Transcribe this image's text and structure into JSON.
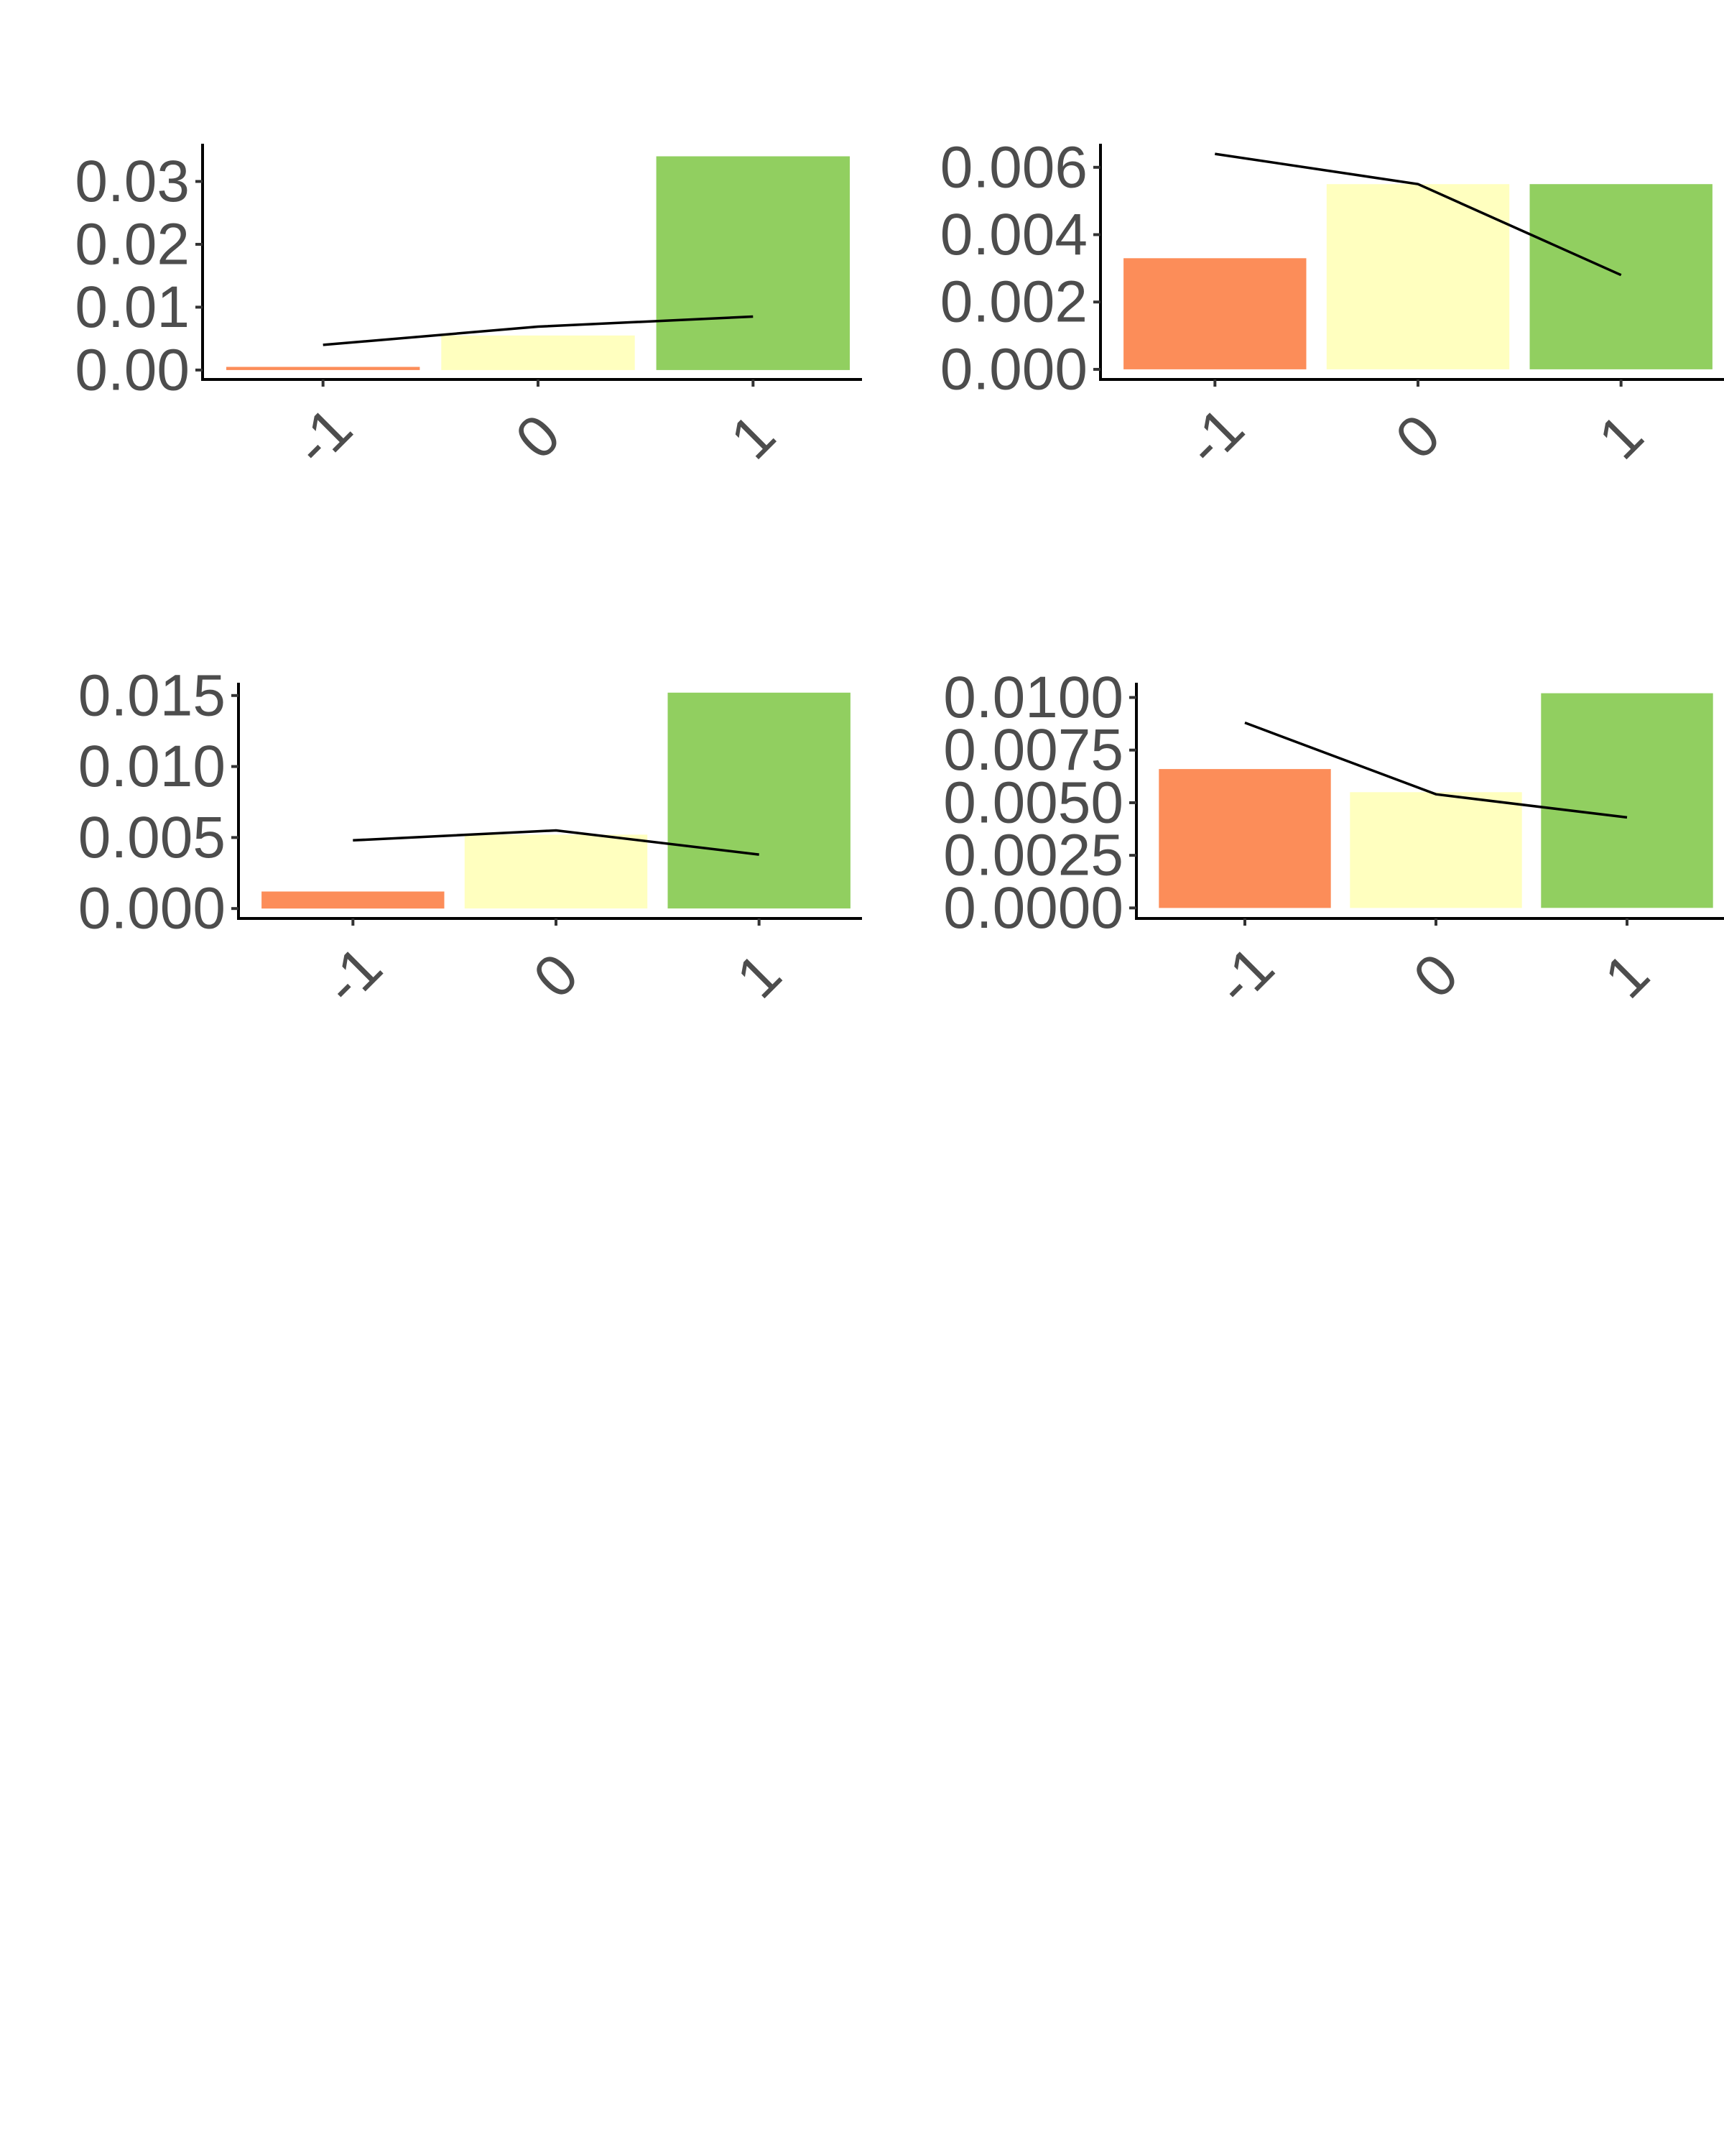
{
  "figure": {
    "panel_count": 4,
    "layout": "2x2 grid of small charts in the upper portion of the canvas"
  },
  "colors": {
    "bar_minus1": "#fc8d59",
    "bar_0": "#ffffbf",
    "bar_1": "#91cf60",
    "line": "#000000",
    "tick_text": "#4d4d4d"
  },
  "chart_data": [
    {
      "type": "bar",
      "categories": [
        "-1",
        "0",
        "1"
      ],
      "values": [
        0.0005,
        0.0055,
        0.034
      ],
      "line_values": [
        0.004,
        0.0069,
        0.0085
      ],
      "ylim": [
        -0.0015,
        0.036
      ],
      "yticks": [
        0.0,
        0.01,
        0.02,
        0.03
      ],
      "ytick_labels": [
        "0.00",
        "0.01",
        "0.02",
        "0.03"
      ],
      "title": "",
      "xlabel": "",
      "ylabel": ""
    },
    {
      "type": "bar",
      "categories": [
        "-1",
        "0",
        "1"
      ],
      "values": [
        0.0033,
        0.0055,
        0.0055
      ],
      "line_values": [
        0.0064,
        0.0055,
        0.0028
      ],
      "ylim": [
        -0.0003,
        0.0067
      ],
      "yticks": [
        0.0,
        0.002,
        0.004,
        0.006
      ],
      "ytick_labels": [
        "0.000",
        "0.002",
        "0.004",
        "0.006"
      ],
      "title": "",
      "xlabel": "",
      "ylabel": ""
    },
    {
      "type": "bar",
      "categories": [
        "-1",
        "0",
        "1"
      ],
      "values": [
        0.0012,
        0.0052,
        0.0152
      ],
      "line_values": [
        0.0048,
        0.0055,
        0.0038
      ],
      "ylim": [
        -0.0007,
        0.0159
      ],
      "yticks": [
        0.0,
        0.005,
        0.01,
        0.015
      ],
      "ytick_labels": [
        "0.000",
        "0.005",
        "0.010",
        "0.015"
      ],
      "title": "",
      "xlabel": "",
      "ylabel": ""
    },
    {
      "type": "bar",
      "categories": [
        "-1",
        "0",
        "1"
      ],
      "values": [
        0.0066,
        0.0055,
        0.0102
      ],
      "line_values": [
        0.0088,
        0.0054,
        0.0043
      ],
      "ylim": [
        -0.0005,
        0.0107
      ],
      "yticks": [
        0.0,
        0.0025,
        0.005,
        0.0075,
        0.01
      ],
      "ytick_labels": [
        "0.0000",
        "0.0025",
        "0.0050",
        "0.0075",
        "0.0100"
      ],
      "title": "",
      "xlabel": "",
      "ylabel": ""
    }
  ]
}
